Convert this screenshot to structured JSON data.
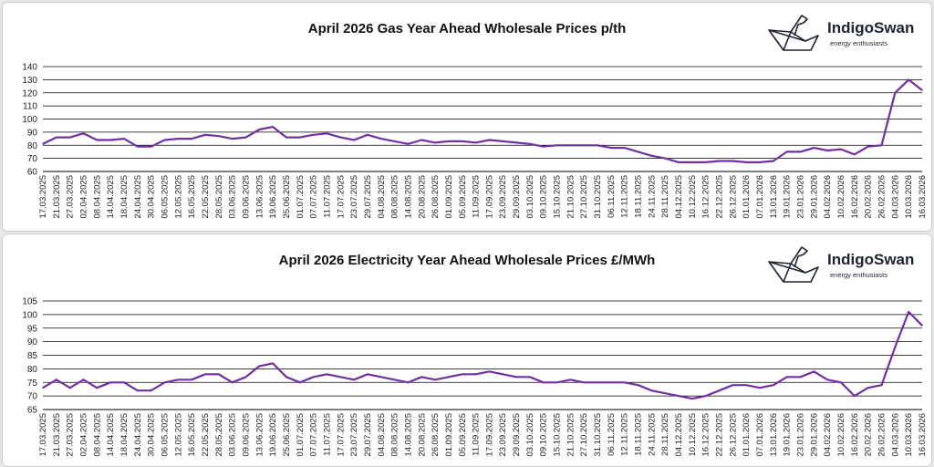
{
  "charts": [
    {
      "title": "April 2026 Gas Year Ahead Wholesale Prices p/th",
      "logo": {
        "brand": "IndigoSwan",
        "tagline": "energy enthusiasts"
      }
    },
    {
      "title": "April 2026 Electricity Year Ahead Wholesale Prices £/MWh",
      "logo": {
        "brand": "IndigoSwan",
        "tagline": "energy enthusiasts"
      }
    }
  ],
  "colors": {
    "line": "#7030a0",
    "grid": "#000000"
  },
  "chart_data": [
    {
      "type": "line",
      "title": "April 2026 Gas Year Ahead Wholesale Prices p/th",
      "xlabel": "",
      "ylabel": "",
      "ylim": [
        60,
        140
      ],
      "yticks": [
        60,
        70,
        80,
        90,
        100,
        110,
        120,
        130,
        140
      ],
      "grid": true,
      "x": [
        "17.03.2025",
        "21.03.2025",
        "27.03.2025",
        "02.04.2025",
        "08.04.2025",
        "14.04.2025",
        "18.04.2025",
        "24.04.2025",
        "30.04.2025",
        "06.05.2025",
        "12.05.2025",
        "16.05.2025",
        "22.05.2025",
        "28.05.2025",
        "03.06.2025",
        "09.06.2025",
        "13.06.2025",
        "19.06.2025",
        "25.06.2025",
        "01.07.2025",
        "07.07.2025",
        "11.07.2025",
        "17.07.2025",
        "23.07.2025",
        "29.07.2025",
        "04.08.2025",
        "08.08.2025",
        "14.08.2025",
        "20.08.2025",
        "26.08.2025",
        "01.09.2025",
        "05.09.2025",
        "11.09.2025",
        "17.09.2025",
        "23.09.2025",
        "29.09.2025",
        "03.10.2025",
        "09.10.2025",
        "15.10.2025",
        "21.10.2025",
        "27.10.2025",
        "31.10.2025",
        "06.11.2025",
        "12.11.2025",
        "18.11.2025",
        "24.11.2025",
        "28.11.2025",
        "04.12.2025",
        "10.12.2025",
        "16.12.2025",
        "22.12.2025",
        "26.12.2025",
        "01.01.2026",
        "07.01.2026",
        "13.01.2026",
        "19.01.2026",
        "23.01.2026",
        "29.01.2026",
        "04.02.2026",
        "10.02.2026",
        "16.02.2026",
        "20.02.2026",
        "26.02.2026",
        "04.03.2026",
        "10.03.2026",
        "16.03.2026"
      ],
      "series": [
        {
          "values": [
            81,
            86,
            86,
            89,
            84,
            84,
            85,
            79,
            79,
            84,
            85,
            85,
            88,
            87,
            85,
            86,
            92,
            94,
            86,
            86,
            88,
            89,
            86,
            84,
            88,
            85,
            83,
            81,
            84,
            82,
            83,
            83,
            82,
            84,
            83,
            82,
            81,
            79,
            80,
            80,
            80,
            80,
            78,
            78,
            75,
            72,
            70,
            67,
            67,
            67,
            68,
            68,
            67,
            67,
            68,
            75,
            75,
            78,
            76,
            77,
            73,
            79,
            80,
            120,
            130,
            122
          ]
        }
      ]
    },
    {
      "type": "line",
      "title": "April 2026 Electricity Year Ahead Wholesale Prices £/MWh",
      "xlabel": "",
      "ylabel": "",
      "ylim": [
        65,
        105
      ],
      "yticks": [
        65,
        70,
        75,
        80,
        85,
        90,
        95,
        100,
        105
      ],
      "grid": true,
      "x": [
        "17.03.2025",
        "21.03.2025",
        "27.03.2025",
        "02.04.2025",
        "08.04.2025",
        "14.04.2025",
        "18.04.2025",
        "24.04.2025",
        "30.04.2025",
        "06.05.2025",
        "12.05.2025",
        "16.05.2025",
        "22.05.2025",
        "28.05.2025",
        "03.06.2025",
        "09.06.2025",
        "13.06.2025",
        "19.06.2025",
        "25.06.2025",
        "01.07.2025",
        "07.07.2025",
        "11.07.2025",
        "17.07.2025",
        "23.07.2025",
        "29.07.2025",
        "04.08.2025",
        "08.08.2025",
        "14.08.2025",
        "20.08.2025",
        "26.08.2025",
        "01.09.2025",
        "05.09.2025",
        "11.09.2025",
        "17.09.2025",
        "23.09.2025",
        "29.09.2025",
        "03.10.2025",
        "09.10.2025",
        "15.10.2025",
        "21.10.2025",
        "27.10.2025",
        "31.10.2025",
        "06.11.2025",
        "12.11.2025",
        "18.11.2025",
        "24.11.2025",
        "28.11.2025",
        "04.12.2025",
        "10.12.2025",
        "16.12.2025",
        "22.12.2025",
        "26.12.2025",
        "01.01.2026",
        "07.01.2026",
        "13.01.2026",
        "19.01.2026",
        "23.01.2026",
        "29.01.2026",
        "04.02.2026",
        "10.02.2026",
        "16.02.2026",
        "20.02.2026",
        "26.02.2026",
        "04.03.2026",
        "10.03.2026",
        "16.03.2026"
      ],
      "series": [
        {
          "values": [
            73,
            76,
            73,
            76,
            73,
            75,
            75,
            72,
            72,
            75,
            76,
            76,
            78,
            78,
            75,
            77,
            81,
            82,
            77,
            75,
            77,
            78,
            77,
            76,
            78,
            77,
            76,
            75,
            77,
            76,
            77,
            78,
            78,
            79,
            78,
            77,
            77,
            75,
            75,
            76,
            75,
            75,
            75,
            75,
            74,
            72,
            71,
            70,
            69,
            70,
            72,
            74,
            74,
            73,
            74,
            77,
            77,
            79,
            76,
            75,
            70,
            73,
            74,
            88,
            101,
            96
          ]
        }
      ]
    }
  ]
}
